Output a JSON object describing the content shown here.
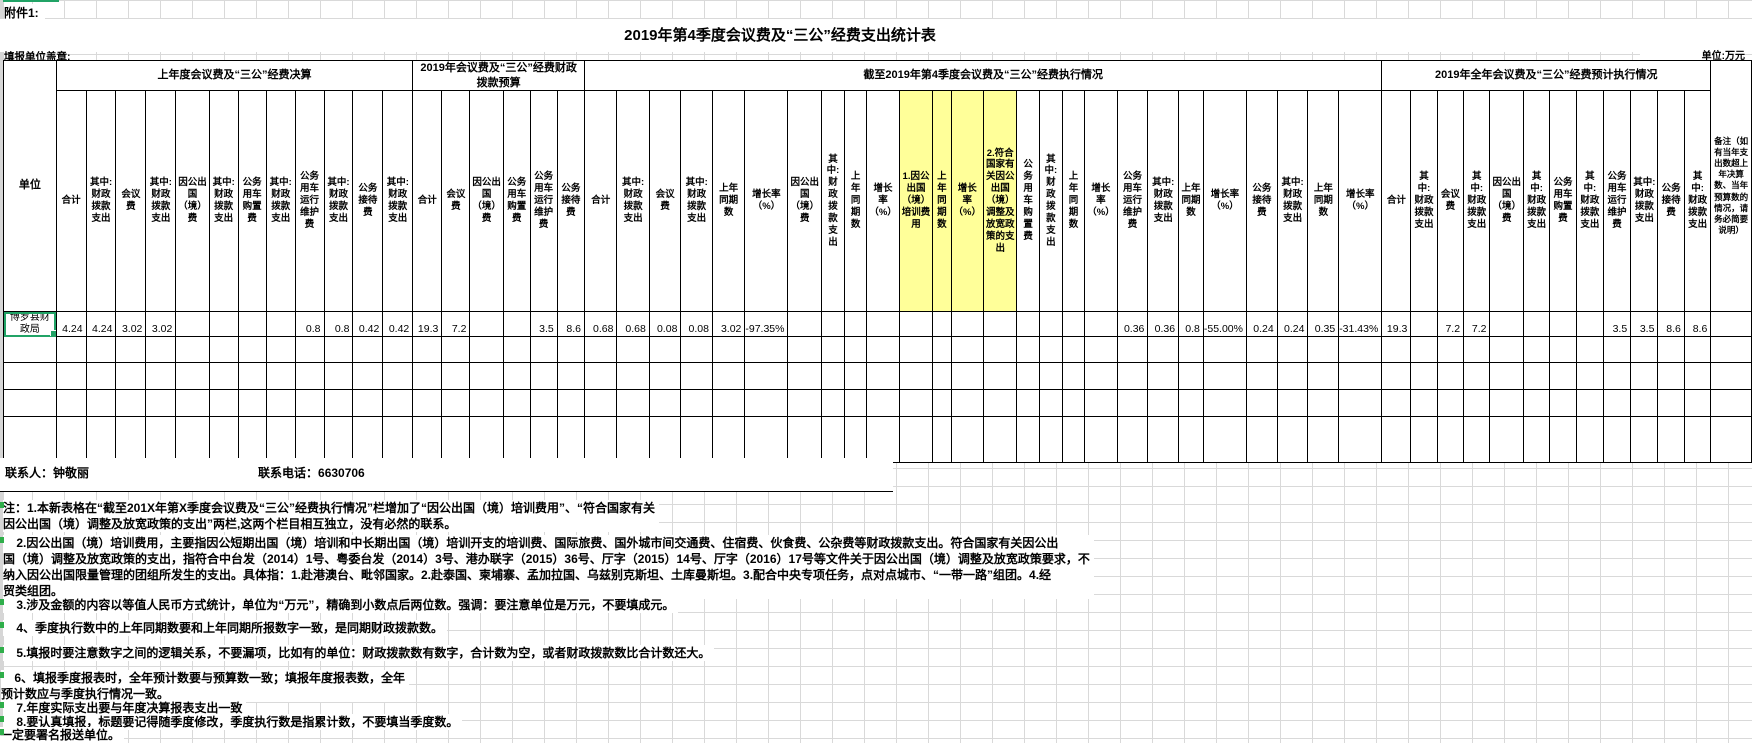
{
  "colors": {
    "selection_green": "#21a366",
    "highlight_yellow": "#ffff99"
  },
  "page": {
    "attachment_label": "附件1:",
    "title": "2019年第4季度会议费及“三公”经费支出统计表",
    "stamp_label": "填报单位盖章:",
    "unit_note": "单位:万元"
  },
  "table": {
    "unit_col_header": "单位",
    "remark_col_header": "备注（如有当年支出数超上年决算数、当年预算数的情况，请务必简要说明）",
    "groups": [
      {
        "label": "上年度会议费及“三公”经费决算",
        "columns": [
          "合计",
          "其中:财政拨款支出",
          "会议费",
          "其中:财政拨款支出",
          "因公出国（境）费",
          "其中:财政拨款支出",
          "公务用车购置费",
          "其中:财政拨款支出",
          "公务用车运行维护费",
          "其中:财政拨款支出",
          "公务接待费",
          "其中:财政拨款支出"
        ]
      },
      {
        "label": "2019年会议费及“三公”经费财政拨款预算",
        "columns": [
          "合计",
          "会议费",
          "因公出国（境）费",
          "公务用车购置费",
          "公务用车运行维护费",
          "公务接待费"
        ]
      },
      {
        "label": "截至2019年第4季度会议费及“三公”经费执行情况",
        "columns": [
          "合计",
          "其中:财政拨款支出",
          "会议费",
          "其中:财政拨款支出",
          "上年同期数",
          "增长率（%）",
          "因公出国（境）费",
          "其中:财政拨款支出",
          "上年同期数",
          "增长率（%）",
          "1.因公出国（境）培训费用",
          "上年同期数",
          "增长率（%）",
          "2.符合国家有关因公出国（境）调整及放宽政策的支出",
          "公务用车购置费",
          "其中:财政拨款支出",
          "上年同期数",
          "增长率（%）",
          "公务用车运行维护费",
          "其中:财政拨款支出",
          "上年同期数",
          "增长率（%）",
          "公务接待费",
          "其中:财政拨款支出",
          "上年同期数",
          "增长率（%）"
        ],
        "highlight": [
          10,
          11,
          12,
          13
        ]
      },
      {
        "label": "2019年全年会议费及“三公”经费预计执行情况",
        "columns": [
          "合计",
          "其中:财政拨款支出",
          "会议费",
          "其中:财政拨款支出",
          "因公出国（境）费",
          "其中:财政拨款支出",
          "公务用车购置费",
          "其中:财政拨款支出",
          "公务用车运行维护费",
          "其中:财政拨款支出",
          "公务接待费",
          "其中:财政拨款支出"
        ]
      }
    ],
    "row": {
      "unit": "博罗县财政局",
      "values": [
        [
          "4.24",
          "4.24",
          "3.02",
          "3.02",
          "",
          "",
          "",
          "",
          "0.8",
          "0.8",
          "0.42",
          "0.42"
        ],
        [
          "19.3",
          "7.2",
          "",
          "",
          "3.5",
          "8.6"
        ],
        [
          "0.68",
          "0.68",
          "0.08",
          "0.08",
          "3.02",
          "-97.35%",
          "",
          "",
          "",
          "",
          "",
          "",
          "",
          "",
          "",
          "",
          "",
          "",
          "0.36",
          "0.36",
          "0.8",
          "-55.00%",
          "0.24",
          "0.24",
          "0.35",
          "-31.43%"
        ],
        [
          "19.3",
          "",
          "7.2",
          "7.2",
          "",
          "",
          "",
          "",
          "3.5",
          "3.5",
          "8.6",
          "8.6"
        ]
      ],
      "remark": ""
    }
  },
  "contact": {
    "person_label": "联系人：",
    "person_name": "钟敬丽",
    "phone_label": "联系电话：",
    "phone_number": "6630706"
  },
  "notes": [
    "注：1.本新表格在“截至201X年第X季度会议费及“三公”经费执行情况”栏增加了“因公出国（境）培训费用”、“符合国家有关\n因公出国（境）调整及放宽政策的支出”两栏,这两个栏目相互独立，没有必然的联系。",
    "    2.因公出国（境）培训费用，主要指因公短期出国（境）培训和中长期出国（境）培训开支的培训费、国际旅费、国外城市间交通费、住宿费、伙食费、公杂费等财政拨款支出。符合国家有关因公出\n国（境）调整及放宽政策的支出，指符合中台发（2014）1号、粤委台发（2014）3号、港办联字（2015）36号、厅字（2015）14号、厅字（2016）17号等文件关于因公出国（境）调整及放宽政策要求，不\n纳入因公出国限量管理的团组所发生的支出。具体指：1.赴港澳台、毗邻国家。2.赴泰国、柬埔寨、孟加拉国、乌兹别克斯坦、土库曼斯坦。3.配合中央专项任务，点对点城市、“一带一路”组团。4.经\n贸类组团。",
    "    3.涉及金额的内容以等值人民币方式统计，单位为“万元”，精确到小数点后两位数。强调：要注意单位是万元，不要填成元。",
    "    4、季度执行数中的上年同期数要和上年同期所报数字一致，是同期财政拨款数。",
    "    5.填报时要注意数字之间的逻辑关系，不要漏项，比如有的单位：财政拨款数有数字，合计数为空，或者财政拨款数比合计数还大。",
    "    6、填报季度报表时，全年预计数要与预算数一致；填报年度报表数，全年\n预计数应与季度执行情况一致。",
    "    7.年度实际支出要与年度决算报表支出一致",
    "    8.要认真填报，标题要记得随季度修改，季度执行数是指累计数，不要填当季度数。",
    "一定要署名报送单位。"
  ]
}
